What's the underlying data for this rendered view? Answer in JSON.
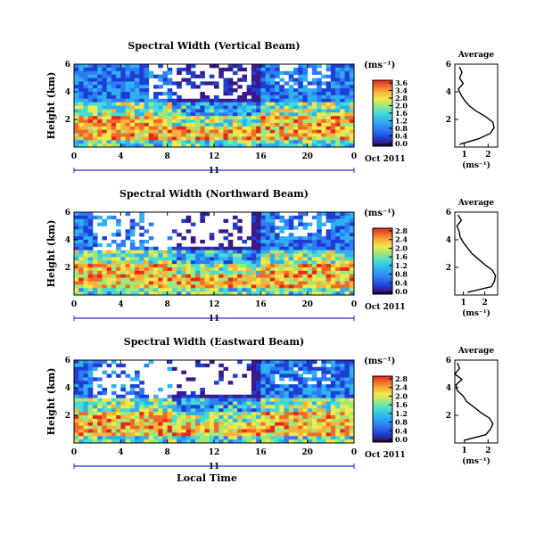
{
  "chart_data": [
    {
      "type": "heatmap",
      "title": "Spectral Width (Vertical Beam)",
      "ylabel": "Height (km)",
      "x_ticks": [
        "0",
        "4",
        "8",
        "12",
        "16",
        "20",
        "0"
      ],
      "y_ticks": [
        "6",
        "4",
        "2"
      ],
      "date_day": "11",
      "date_label": "Oct 2011",
      "xlim_hours": [
        0,
        24
      ],
      "ylim_km": [
        0,
        6
      ],
      "colorbar": {
        "unit": "(ms⁻¹)",
        "ticks": [
          "3.6",
          "3.4",
          "2.8",
          "2.0",
          "1.6",
          "1.2",
          "0.8",
          "0.4",
          "0.0"
        ],
        "range": [
          0,
          3.6
        ]
      },
      "average_profile": {
        "title": "Average",
        "unit": "(ms⁻¹)",
        "x_ticks": [
          "1",
          "2"
        ],
        "y_ticks": [
          "6",
          "4",
          "2"
        ],
        "xlim": [
          0.6,
          2.4
        ],
        "height_km": [
          0.2,
          0.6,
          1.0,
          1.4,
          1.8,
          2.2,
          2.6,
          3.0,
          3.4,
          3.8,
          4.2,
          4.6,
          5.0,
          5.4,
          5.8
        ],
        "values": [
          0.8,
          1.6,
          2.1,
          2.25,
          2.2,
          1.9,
          1.5,
          1.2,
          1.0,
          0.85,
          0.75,
          0.95,
          0.8,
          0.9,
          0.8
        ]
      }
    },
    {
      "type": "heatmap",
      "title": "Spectral Width (Northward Beam)",
      "ylabel": "Height (km)",
      "x_ticks": [
        "0",
        "4",
        "8",
        "12",
        "16",
        "20",
        "0"
      ],
      "y_ticks": [
        "6",
        "4",
        "2"
      ],
      "date_day": "11",
      "date_label": "Oct 2011",
      "xlim_hours": [
        0,
        24
      ],
      "ylim_km": [
        0,
        6
      ],
      "colorbar": {
        "unit": "(ms⁻¹)",
        "ticks": [
          "2.8",
          "2.4",
          "2.0",
          "1.6",
          "1.2",
          "0.8",
          "0.4",
          "0.0"
        ],
        "range": [
          0,
          2.8
        ]
      },
      "average_profile": {
        "title": "Average",
        "unit": "(ms⁻¹)",
        "x_ticks": [
          "1",
          "2"
        ],
        "y_ticks": [
          "6",
          "4",
          "2"
        ],
        "xlim": [
          0.6,
          2.6
        ],
        "height_km": [
          0.2,
          0.6,
          1.0,
          1.4,
          1.8,
          2.2,
          2.6,
          3.0,
          3.4,
          3.8,
          4.2,
          4.6,
          5.0,
          5.4,
          5.8
        ],
        "values": [
          1.2,
          2.3,
          2.45,
          2.5,
          2.35,
          2.0,
          1.7,
          1.4,
          1.2,
          1.0,
          0.85,
          0.8,
          0.7,
          0.9,
          0.75
        ]
      }
    },
    {
      "type": "heatmap",
      "title": "Spectral Width (Eastward Beam)",
      "ylabel": "Height (km)",
      "x_ticks": [
        "0",
        "4",
        "8",
        "12",
        "16",
        "20",
        "0"
      ],
      "y_ticks": [
        "6",
        "4",
        "2"
      ],
      "date_day": "11",
      "date_label": "Oct 2011",
      "xlabel": "Local Time",
      "xlim_hours": [
        0,
        24
      ],
      "ylim_km": [
        0,
        6
      ],
      "colorbar": {
        "unit": "(ms⁻¹)",
        "ticks": [
          "2.8",
          "2.4",
          "2.0",
          "1.6",
          "1.2",
          "0.8",
          "0.4",
          "0.0"
        ],
        "range": [
          0,
          2.8
        ]
      },
      "average_profile": {
        "title": "Average",
        "unit": "(ms⁻¹)",
        "x_ticks": [
          "1",
          "2"
        ],
        "y_ticks": [
          "6",
          "4",
          "2"
        ],
        "xlim": [
          0.6,
          2.4
        ],
        "height_km": [
          0.2,
          0.6,
          1.0,
          1.4,
          1.8,
          2.2,
          2.6,
          3.0,
          3.4,
          3.8,
          4.2,
          4.6,
          5.0,
          5.4,
          5.8
        ],
        "values": [
          1.0,
          1.9,
          2.1,
          2.2,
          2.05,
          1.7,
          1.4,
          1.1,
          0.95,
          0.7,
          0.65,
          0.9,
          0.6,
          0.8,
          0.7
        ]
      }
    }
  ],
  "colors": {
    "scale": [
      "#000000",
      "#3a1a8a",
      "#1d3fd4",
      "#2f7bf5",
      "#2fb0f0",
      "#45dcd8",
      "#9fe87a",
      "#f2e84a",
      "#f8b23a",
      "#f06a2a",
      "#e22a1e"
    ],
    "axis_blue": "#1f2fd0"
  }
}
